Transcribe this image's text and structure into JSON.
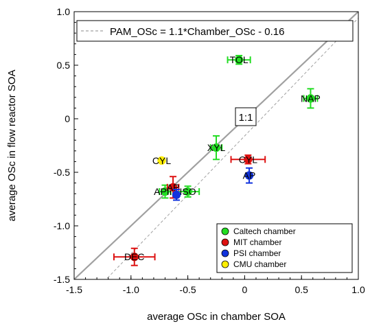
{
  "chart_data": {
    "type": "scatter",
    "xlabel": "average OSc in chamber SOA",
    "ylabel": "average OSc in flow reactor SOA",
    "xlim": [
      -1.5,
      1.0
    ],
    "ylim": [
      -1.5,
      1.0
    ],
    "x_ticks": [
      {
        "value": -1.5,
        "label": "-1.5"
      },
      {
        "value": -1.0,
        "label": "-1.0"
      },
      {
        "value": -0.5,
        "label": "-0.5"
      },
      {
        "value": 0,
        "label": "0"
      },
      {
        "value": 0.5,
        "label": "0.5"
      },
      {
        "value": 1.0,
        "label": "1.0"
      }
    ],
    "y_ticks": [
      {
        "value": -1.5,
        "label": "-1.5"
      },
      {
        "value": -1.0,
        "label": "-1.0"
      },
      {
        "value": -0.5,
        "label": "-0.5"
      },
      {
        "value": 0,
        "label": "0"
      },
      {
        "value": 0.5,
        "label": "0.5"
      },
      {
        "value": 1.0,
        "label": "1.0"
      }
    ],
    "reference_line": {
      "label": "1:1",
      "slope": 1,
      "intercept": 0,
      "color": "#a0a0a0"
    },
    "fit_line": {
      "label": "PAM_OSc = 1.1*Chamber_OSc - 0.16",
      "slope": 1.1,
      "intercept": -0.16,
      "color": "#a0a0a0",
      "style": "dashed"
    },
    "legend_position": "bottom-right",
    "series": [
      {
        "name": "Caltech chamber",
        "color": "#22dd22",
        "points": [
          {
            "label": "TOL",
            "x": -0.05,
            "y": 0.55,
            "xerr": 0.1,
            "yerr": 0.04
          },
          {
            "label": "NAP",
            "x": 0.58,
            "y": 0.19,
            "xerr": 0.06,
            "yerr": 0.09
          },
          {
            "label": "XYL",
            "x": -0.25,
            "y": -0.27,
            "xerr": 0.05,
            "yerr": 0.11
          },
          {
            "label": "APIN",
            "x": -0.7,
            "y": -0.68,
            "xerr": 0.05,
            "yerr": 0.06
          },
          {
            "label": "ISO",
            "x": -0.5,
            "y": -0.68,
            "xerr": 0.1,
            "yerr": 0.05
          }
        ]
      },
      {
        "name": "MIT chamber",
        "color": "#dd1111",
        "points": [
          {
            "label": "CYL",
            "x": 0.03,
            "y": -0.38,
            "xerr": 0.15,
            "yerr": 0.04
          },
          {
            "label": "AP",
            "x": -0.63,
            "y": -0.64,
            "xerr": 0.05,
            "yerr": 0.1
          },
          {
            "label": "DEC",
            "x": -0.97,
            "y": -1.29,
            "xerr": 0.18,
            "yerr": 0.08
          }
        ]
      },
      {
        "name": "PSI chamber",
        "color": "#1133dd",
        "points": [
          {
            "label": "AP",
            "x": 0.04,
            "y": -0.53,
            "xerr": 0.02,
            "yerr": 0.07
          },
          {
            "label": "",
            "x": -0.6,
            "y": -0.71,
            "xerr": 0.02,
            "yerr": 0.05
          }
        ]
      },
      {
        "name": "CMU chamber",
        "color": "#ffee00",
        "points": [
          {
            "label": "CYL",
            "x": -0.73,
            "y": -0.39,
            "xerr": 0,
            "yerr": 0
          }
        ]
      }
    ]
  }
}
